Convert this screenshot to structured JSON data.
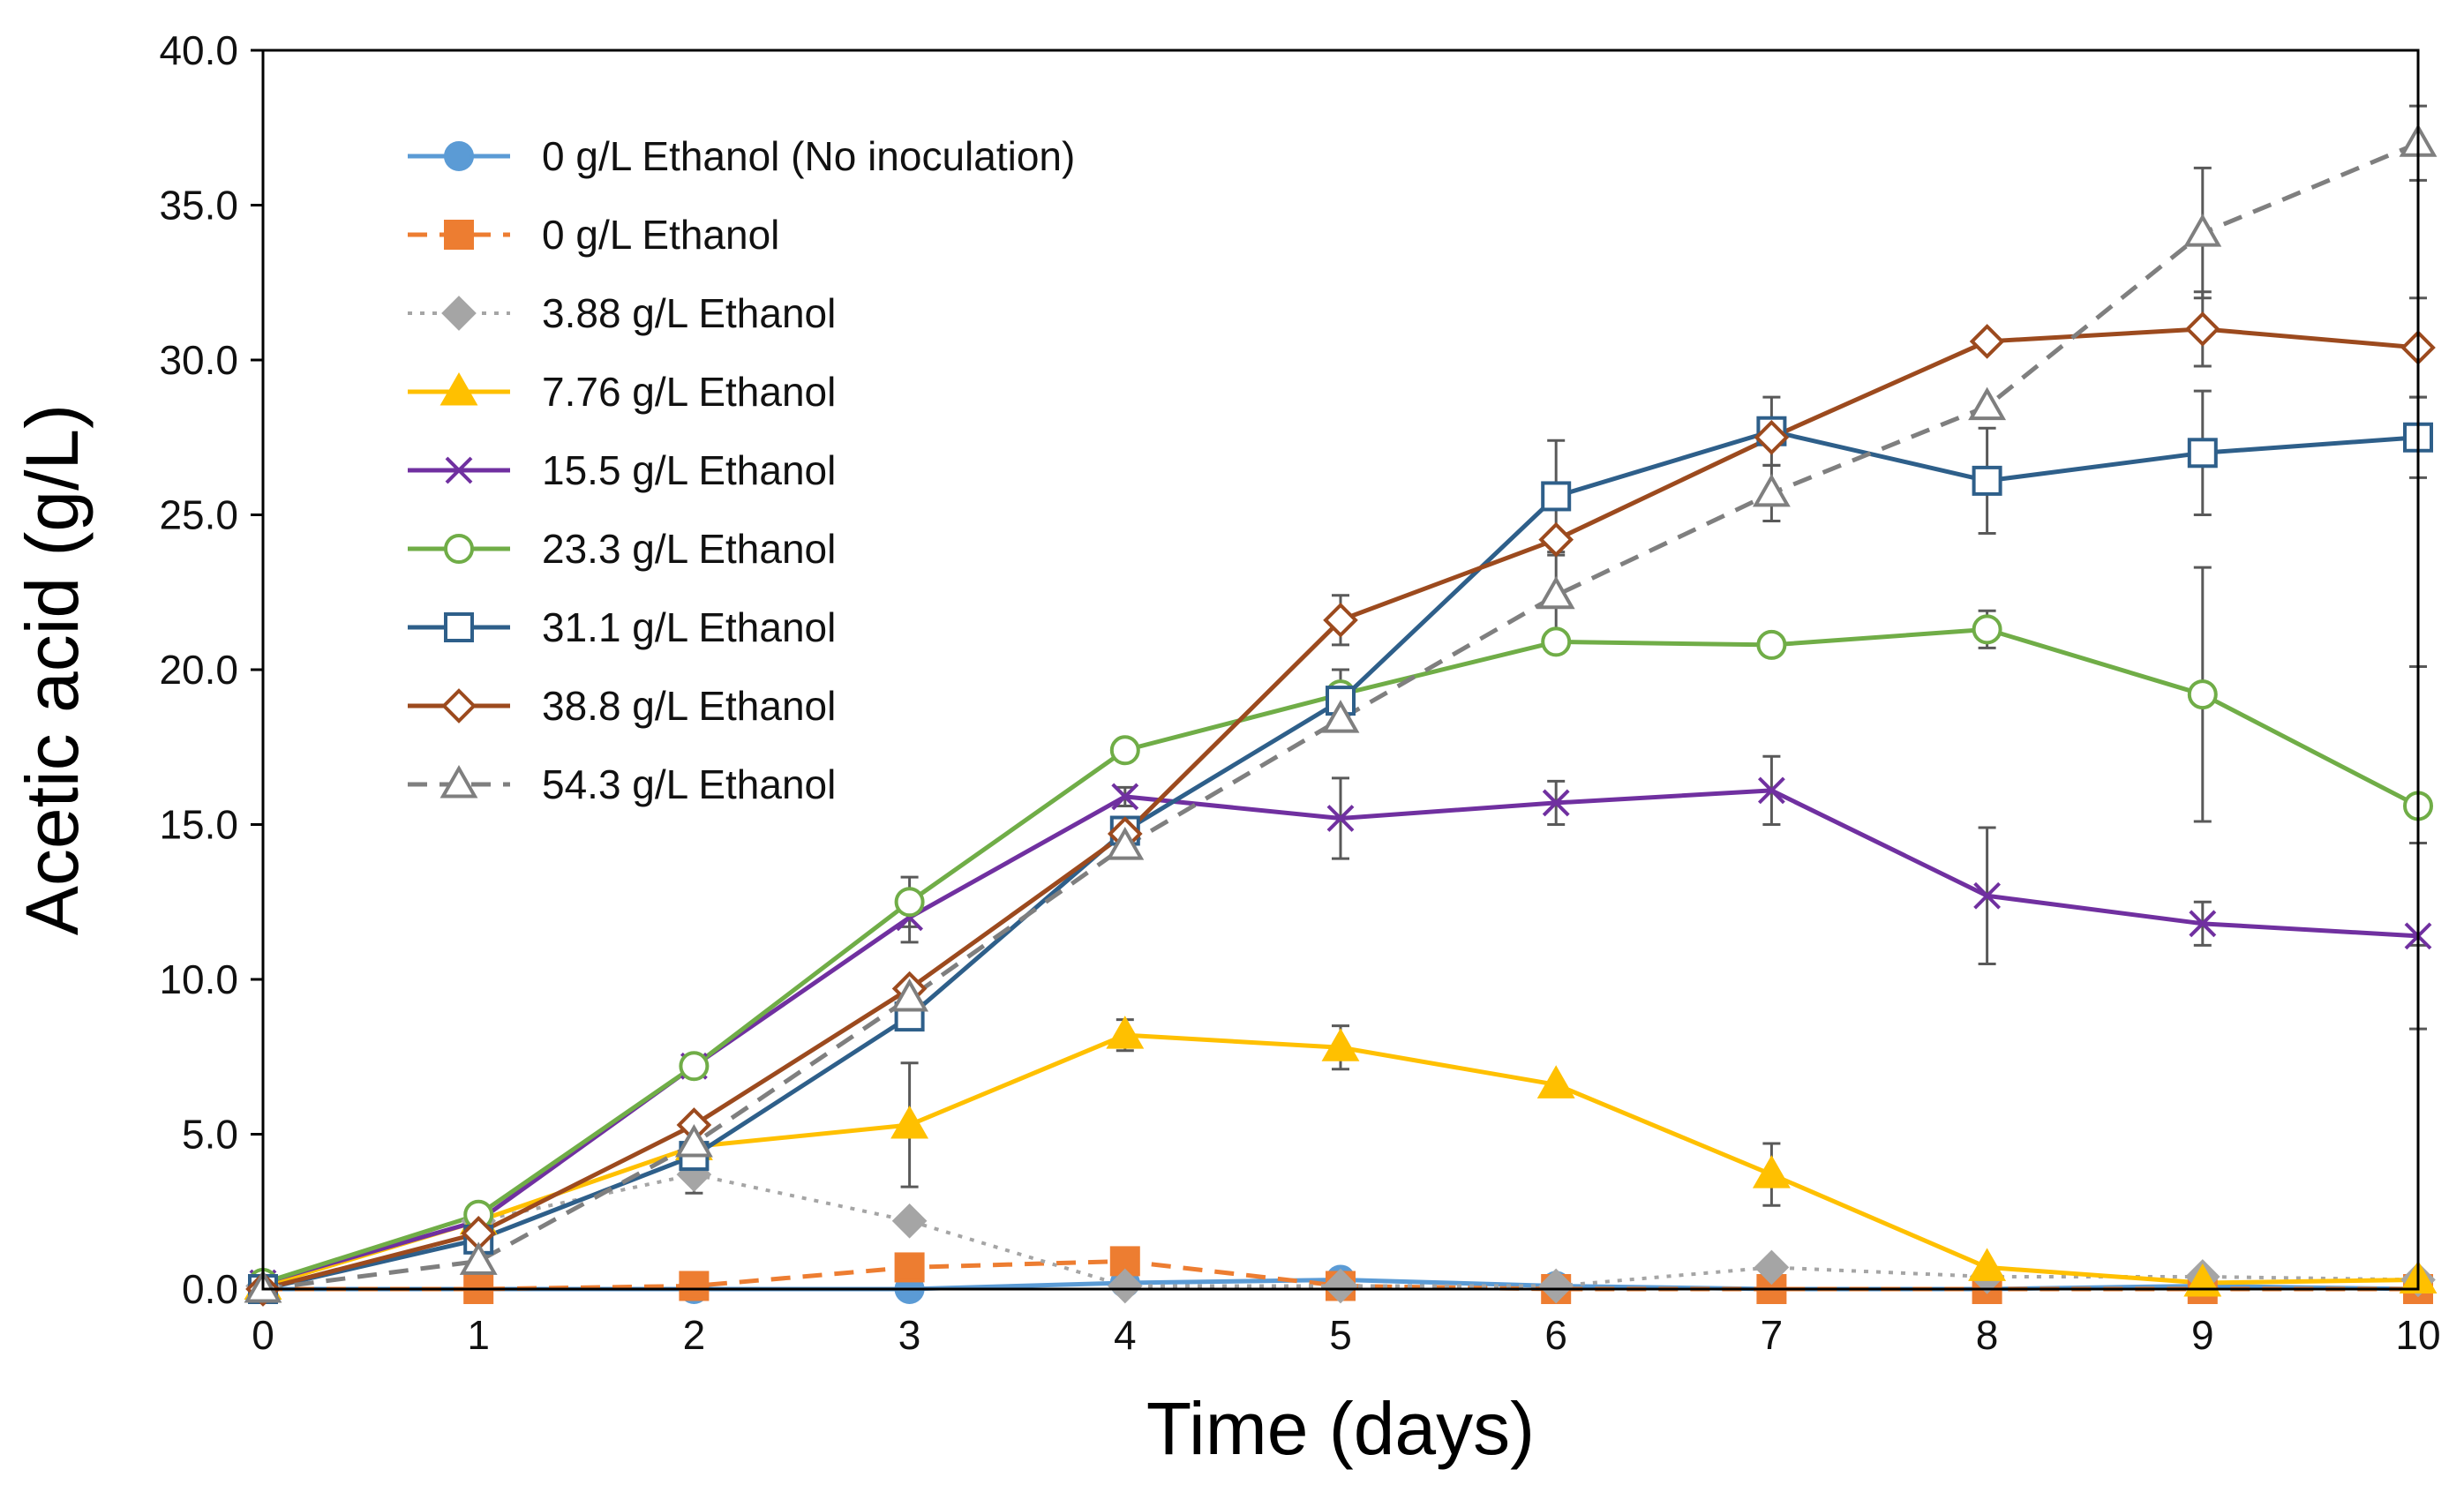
{
  "chart_data": {
    "type": "line",
    "xlabel": "Time (days)",
    "ylabel": "Acetic acid (g/L)",
    "xlim": [
      0,
      10
    ],
    "ylim": [
      0,
      40
    ],
    "x_ticks": [
      0,
      1,
      2,
      3,
      4,
      5,
      6,
      7,
      8,
      9,
      10
    ],
    "y_ticks": [
      "0.0",
      "5.0",
      "10.0",
      "15.0",
      "20.0",
      "25.0",
      "30.0",
      "35.0",
      "40.0"
    ],
    "legend_position": "top-left",
    "grid": false,
    "x": [
      0,
      1,
      2,
      3,
      4,
      5,
      6,
      7,
      8,
      9,
      10
    ],
    "series": [
      {
        "name": "0 g/L Ethanol (No inoculation)",
        "color": "#5B9BD5",
        "marker": "circle",
        "dash": "solid",
        "filled": true,
        "values": [
          0.0,
          0.0,
          0.0,
          0.0,
          0.2,
          0.3,
          0.1,
          0.0,
          0.0,
          0.1,
          0.0
        ],
        "errors": [
          0,
          0,
          0,
          0,
          0,
          0,
          0,
          0,
          0,
          0,
          0
        ]
      },
      {
        "name": "0 g/L Ethanol",
        "color": "#ED7D31",
        "marker": "square",
        "dash": "dashed",
        "filled": true,
        "values": [
          0.0,
          0.0,
          0.1,
          0.7,
          0.9,
          0.1,
          0.0,
          0.0,
          0.0,
          0.0,
          0.0
        ],
        "errors": [
          0,
          0,
          0,
          0,
          0,
          0,
          0,
          0,
          0,
          0,
          0
        ]
      },
      {
        "name": "3.88 g/L Ethanol",
        "color": "#A5A5A5",
        "marker": "diamond",
        "dash": "dotted",
        "filled": true,
        "values": [
          0.1,
          2.2,
          3.7,
          2.2,
          0.1,
          0.1,
          0.1,
          0.7,
          0.4,
          0.4,
          0.3
        ],
        "errors": [
          0,
          0,
          0.6,
          0,
          0,
          0,
          0,
          0,
          0,
          0,
          0
        ]
      },
      {
        "name": "7.76 g/L Ethanol",
        "color": "#FFC000",
        "marker": "triangle",
        "dash": "solid",
        "filled": true,
        "values": [
          0.1,
          2.2,
          4.6,
          5.3,
          8.2,
          7.8,
          6.6,
          3.7,
          0.7,
          0.2,
          0.3
        ],
        "errors": [
          0,
          0,
          0,
          2.0,
          0.5,
          0.7,
          0,
          1.0,
          0,
          0,
          0
        ]
      },
      {
        "name": "15.5 g/L Ethanol",
        "color": "#7030A0",
        "marker": "x",
        "dash": "solid",
        "filled": false,
        "values": [
          0.2,
          2.2,
          7.2,
          12.0,
          15.9,
          15.2,
          15.7,
          16.1,
          12.7,
          11.8,
          11.4
        ],
        "errors": [
          0,
          0,
          0,
          0.8,
          0.3,
          1.3,
          0.7,
          1.1,
          2.2,
          0.7,
          3.0
        ]
      },
      {
        "name": "23.3 g/L Ethanol",
        "color": "#70AD47",
        "marker": "circle",
        "dash": "solid",
        "filled": false,
        "values": [
          0.2,
          2.4,
          7.2,
          12.5,
          17.4,
          19.2,
          20.9,
          20.8,
          21.3,
          19.2,
          15.6
        ],
        "errors": [
          0,
          0,
          0,
          0.8,
          0,
          0.8,
          0,
          0,
          0.6,
          4.1,
          4.5
        ]
      },
      {
        "name": "31.1 g/L Ethanol",
        "color": "#2E5F8A",
        "marker": "square",
        "dash": "solid",
        "filled": false,
        "values": [
          0.0,
          1.6,
          4.3,
          8.8,
          14.8,
          19.0,
          25.6,
          27.7,
          26.1,
          27.0,
          27.5
        ],
        "errors": [
          0,
          0,
          0,
          0,
          0,
          0,
          1.8,
          1.1,
          1.7,
          2.0,
          1.3
        ]
      },
      {
        "name": "38.8 g/L Ethanol",
        "color": "#9C4A1E",
        "marker": "diamond",
        "dash": "solid",
        "filled": false,
        "values": [
          0.0,
          1.8,
          5.3,
          9.7,
          14.7,
          21.6,
          24.2,
          27.5,
          30.6,
          31.0,
          30.4
        ],
        "errors": [
          0,
          0,
          0,
          0,
          0,
          0.8,
          0,
          0,
          0,
          1.2,
          1.6
        ]
      },
      {
        "name": "54.3 g/L Ethanol",
        "color": "#7F7F7F",
        "marker": "triangle",
        "dash": "dashed",
        "filled": false,
        "values": [
          0.0,
          0.9,
          4.7,
          9.4,
          14.3,
          18.4,
          22.4,
          25.7,
          28.5,
          34.1,
          37.0
        ],
        "errors": [
          0,
          0,
          0,
          0,
          0,
          0,
          1.3,
          0.9,
          0,
          2.1,
          1.2
        ]
      }
    ]
  }
}
